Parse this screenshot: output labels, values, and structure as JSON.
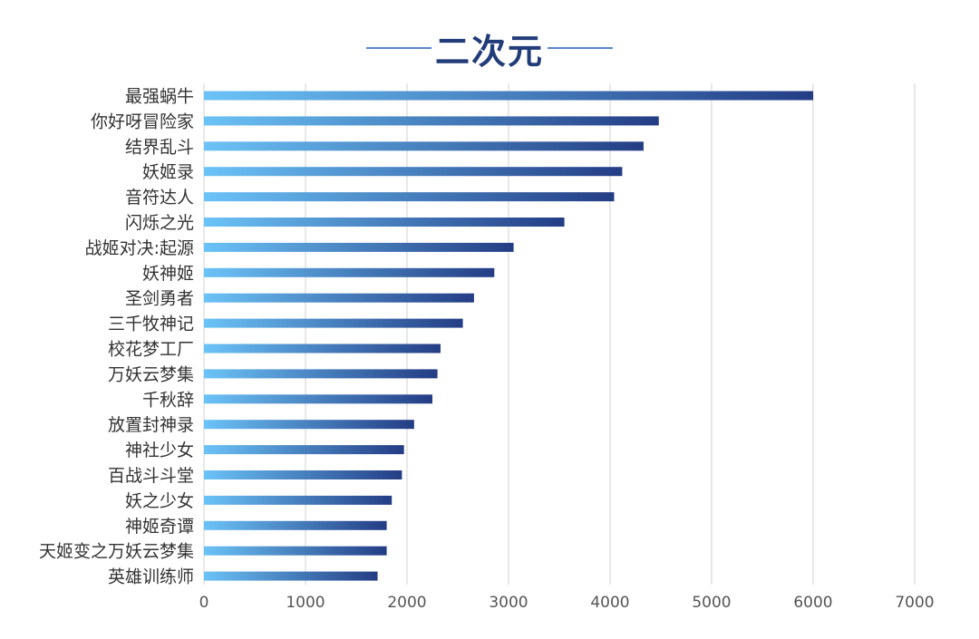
{
  "chart_data": {
    "type": "bar",
    "orientation": "horizontal",
    "title": "二次元",
    "categories": [
      "最强蜗牛",
      "你好呀冒险家",
      "结界乱斗",
      "妖姬录",
      "音符达人",
      "闪烁之光",
      "战姬对决:起源",
      "妖神姬",
      "圣剑勇者",
      "三千牧神记",
      "校花梦工厂",
      "万妖云梦集",
      "千秋辞",
      "放置封神录",
      "神社少女",
      "百战斗斗堂",
      "妖之少女",
      "神姬奇谭",
      "天姬变之万妖云梦集",
      "英雄训练师"
    ],
    "values": [
      6000,
      4480,
      4330,
      4120,
      4040,
      3550,
      3050,
      2860,
      2660,
      2550,
      2330,
      2300,
      2250,
      2070,
      1970,
      1950,
      1850,
      1800,
      1800,
      1710
    ],
    "xlabel": "",
    "ylabel": "",
    "xlim": [
      0,
      7000
    ],
    "xticks": [
      0,
      1000,
      2000,
      3000,
      4000,
      5000,
      6000,
      7000
    ],
    "grid": "vertical",
    "colors": {
      "bar_start": "#6bc3f7",
      "bar_end": "#243d85",
      "grid": "#d9d9d9",
      "title": "#223c7a",
      "title_line": "#5b86cf",
      "label": "#333333",
      "tick": "#555555"
    }
  }
}
